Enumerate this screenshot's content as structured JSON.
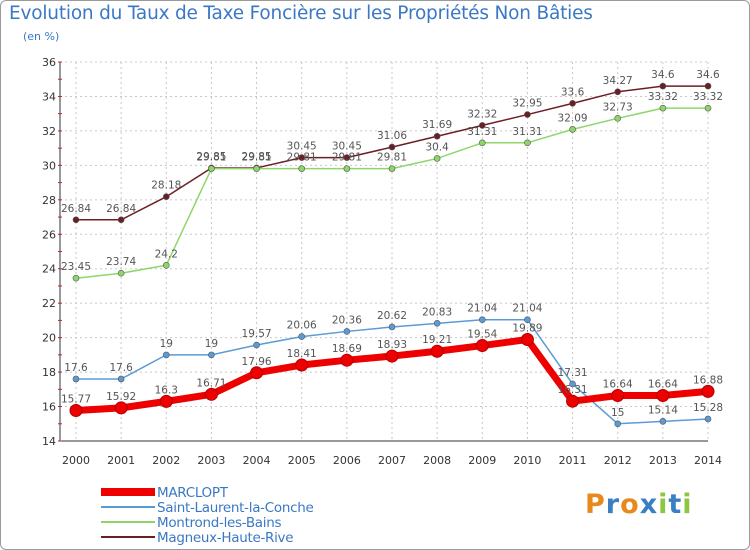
{
  "title": "Evolution du Taux de Taxe Foncière sur les Propriétés Non Bâties",
  "unit_label": "(en %)",
  "logo": {
    "text": "Proxiti",
    "letters": [
      {
        "ch": "P",
        "color": "#e8891c"
      },
      {
        "ch": "r",
        "color": "#3a7fc4"
      },
      {
        "ch": "o",
        "color": "#e8891c"
      },
      {
        "ch": "x",
        "color": "#3a7fc4"
      },
      {
        "ch": "i",
        "color": "#8dc63f"
      },
      {
        "ch": "t",
        "color": "#3a7fc4"
      },
      {
        "ch": "i",
        "color": "#8dc63f"
      }
    ]
  },
  "chart_data": {
    "type": "line",
    "title": "Evolution du Taux de Taxe Foncière sur les Propriétés Non Bâties",
    "ylabel": "(en %)",
    "xlabel": "",
    "x": [
      "2000",
      "2001",
      "2002",
      "2003",
      "2004",
      "2005",
      "2006",
      "2007",
      "2008",
      "2009",
      "2010",
      "2011",
      "2012",
      "2013",
      "2014"
    ],
    "ylim": [
      14,
      36
    ],
    "yticks": [
      14,
      16,
      18,
      20,
      22,
      24,
      26,
      28,
      30,
      32,
      34,
      36
    ],
    "grid": true,
    "legend_position": "bottom-left",
    "series": [
      {
        "name": "Magneux-Haute-Rive",
        "color": "#6b1f24",
        "width": 1.5,
        "marker_radius": 3,
        "values": [
          26.84,
          26.84,
          28.18,
          29.85,
          29.85,
          30.45,
          30.45,
          31.06,
          31.69,
          32.32,
          32.95,
          33.6,
          34.27,
          34.6,
          34.6
        ],
        "labels": [
          "26.84",
          "26.84",
          "28.18",
          "29.85",
          "29.85",
          "30.45",
          "30.45",
          "31.06",
          "31.69",
          "32.32",
          "32.95",
          "33.6",
          "34.27",
          "34.6",
          "34.6"
        ]
      },
      {
        "name": "Montrond-les-Bains",
        "color": "#8fd66a",
        "width": 1.5,
        "marker_radius": 3,
        "values": [
          23.45,
          23.74,
          24.2,
          29.81,
          29.81,
          29.81,
          29.81,
          29.81,
          30.4,
          31.31,
          31.31,
          32.09,
          32.73,
          33.32,
          33.32
        ],
        "labels": [
          "23.45",
          "23.74",
          "24.2",
          "29.81",
          "29.81",
          "29.81",
          "29.81",
          "29.81",
          "30.4",
          "31.31",
          "31.31",
          "32.09",
          "32.73",
          "33.32",
          "33.32"
        ]
      },
      {
        "name": "Saint-Laurent-la-Conche",
        "color": "#5b9bd5",
        "width": 1.5,
        "marker_radius": 3,
        "values": [
          17.6,
          17.6,
          19,
          19,
          19.57,
          20.06,
          20.36,
          20.62,
          20.83,
          21.04,
          21.04,
          17.31,
          15,
          15.14,
          15.28
        ],
        "labels": [
          "17.6",
          "17.6",
          "19",
          "19",
          "19.57",
          "20.06",
          "20.36",
          "20.62",
          "20.83",
          "21.04",
          "21.04",
          "17.31",
          "15",
          "15.14",
          "15.28"
        ]
      },
      {
        "name": "MARCLOPT",
        "color": "#ee0000",
        "width": 7,
        "marker_radius": 6,
        "values": [
          15.77,
          15.92,
          16.3,
          16.71,
          17.96,
          18.41,
          18.69,
          18.93,
          19.21,
          19.54,
          19.89,
          16.31,
          16.64,
          16.64,
          16.88
        ],
        "labels": [
          "15.77",
          "15.92",
          "16.3",
          "16.71",
          "17.96",
          "18.41",
          "18.69",
          "18.93",
          "19.21",
          "19.54",
          "19.89",
          "16.31",
          "16.64",
          "16.64",
          "16.88"
        ]
      }
    ],
    "legend": [
      "MARCLOPT",
      "Saint-Laurent-la-Conche",
      "Montrond-les-Bains",
      "Magneux-Haute-Rive"
    ]
  }
}
